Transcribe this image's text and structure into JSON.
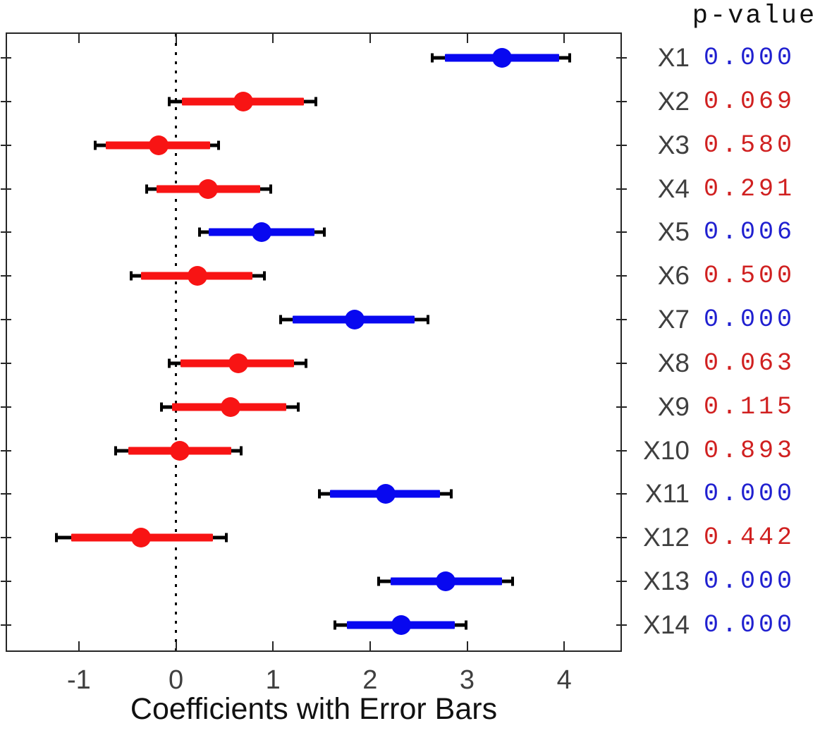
{
  "side_panel": {
    "header": "p-value"
  },
  "colors": {
    "significant_marker": "#0808f0",
    "insignificant_marker": "#f81414",
    "significant_text": "#2020d0",
    "insignificant_text": "#d02020",
    "ci_line": "#000000",
    "axis": "#262626",
    "label_gray": "#3f3f3f"
  },
  "chart_data": {
    "type": "errorbar-dot",
    "title": "",
    "xlabel": "Coefficients with Error Bars",
    "ylabel": "",
    "xlim": [
      -1.74,
      4.58
    ],
    "xticks": [
      -1,
      0,
      1,
      2,
      3,
      4
    ],
    "zero_line_x": 0,
    "grid": false,
    "legend": "none",
    "rows": [
      {
        "label": "X1",
        "coef": 3.36,
        "thick_lo": 2.77,
        "thick_hi": 3.95,
        "thin_lo": 2.64,
        "thin_hi": 4.06,
        "p_value": "0.000",
        "significant": true
      },
      {
        "label": "X2",
        "coef": 0.69,
        "thick_lo": 0.06,
        "thick_hi": 1.32,
        "thin_lo": -0.07,
        "thin_hi": 1.44,
        "p_value": "0.069",
        "significant": false
      },
      {
        "label": "X3",
        "coef": -0.18,
        "thick_lo": -0.72,
        "thick_hi": 0.35,
        "thin_lo": -0.83,
        "thin_hi": 0.44,
        "p_value": "0.580",
        "significant": false
      },
      {
        "label": "X4",
        "coef": 0.33,
        "thick_lo": -0.2,
        "thick_hi": 0.87,
        "thin_lo": -0.3,
        "thin_hi": 0.98,
        "p_value": "0.291",
        "significant": false
      },
      {
        "label": "X5",
        "coef": 0.88,
        "thick_lo": 0.34,
        "thick_hi": 1.43,
        "thin_lo": 0.24,
        "thin_hi": 1.53,
        "p_value": "0.006",
        "significant": true
      },
      {
        "label": "X6",
        "coef": 0.22,
        "thick_lo": -0.36,
        "thick_hi": 0.79,
        "thin_lo": -0.46,
        "thin_hi": 0.91,
        "p_value": "0.500",
        "significant": false
      },
      {
        "label": "X7",
        "coef": 1.84,
        "thick_lo": 1.2,
        "thick_hi": 2.46,
        "thin_lo": 1.08,
        "thin_hi": 2.6,
        "p_value": "0.000",
        "significant": true
      },
      {
        "label": "X8",
        "coef": 0.64,
        "thick_lo": 0.05,
        "thick_hi": 1.22,
        "thin_lo": -0.07,
        "thin_hi": 1.34,
        "p_value": "0.063",
        "significant": false
      },
      {
        "label": "X9",
        "coef": 0.56,
        "thick_lo": -0.04,
        "thick_hi": 1.14,
        "thin_lo": -0.15,
        "thin_hi": 1.26,
        "p_value": "0.115",
        "significant": false
      },
      {
        "label": "X10",
        "coef": 0.04,
        "thick_lo": -0.49,
        "thick_hi": 0.57,
        "thin_lo": -0.62,
        "thin_hi": 0.67,
        "p_value": "0.893",
        "significant": false
      },
      {
        "label": "X11",
        "coef": 2.16,
        "thick_lo": 1.59,
        "thick_hi": 2.72,
        "thin_lo": 1.48,
        "thin_hi": 2.84,
        "p_value": "0.000",
        "significant": true
      },
      {
        "label": "X12",
        "coef": -0.36,
        "thick_lo": -1.08,
        "thick_hi": 0.38,
        "thin_lo": -1.23,
        "thin_hi": 0.52,
        "p_value": "0.442",
        "significant": false
      },
      {
        "label": "X13",
        "coef": 2.78,
        "thick_lo": 2.21,
        "thick_hi": 3.36,
        "thin_lo": 2.09,
        "thin_hi": 3.47,
        "p_value": "0.000",
        "significant": true
      },
      {
        "label": "X14",
        "coef": 2.32,
        "thick_lo": 1.76,
        "thick_hi": 2.87,
        "thin_lo": 1.64,
        "thin_hi": 2.99,
        "p_value": "0.000",
        "significant": true
      }
    ]
  }
}
